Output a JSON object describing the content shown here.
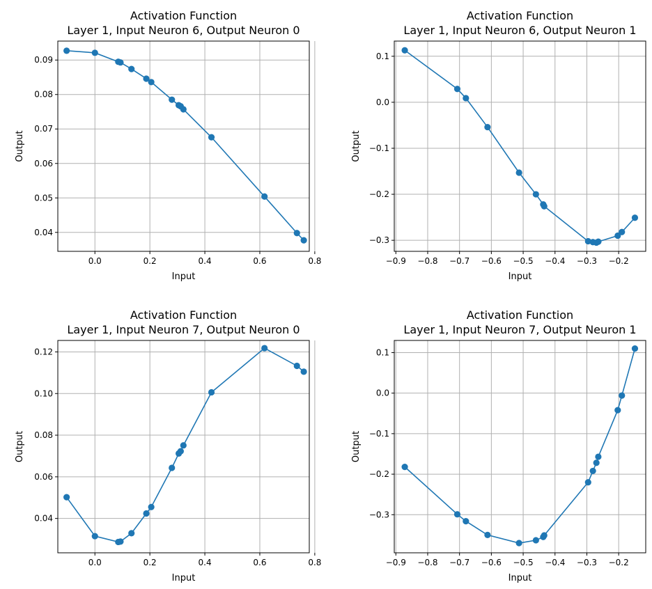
{
  "chart_data": [
    {
      "type": "line",
      "title_line1": "Activation Function",
      "title_line2": "Layer 1, Input Neuron 6, Output Neuron 0",
      "xlabel": "Input",
      "ylabel": "Output",
      "xlim": [
        -0.135,
        0.78
      ],
      "ylim": [
        0.0345,
        0.0955
      ],
      "xticks": [
        0.0,
        0.2,
        0.4,
        0.6,
        0.8
      ],
      "xtick_labels": [
        "0.0",
        "0.2",
        "0.4",
        "0.6",
        "0.8"
      ],
      "yticks": [
        0.04,
        0.05,
        0.06,
        0.07,
        0.08,
        0.09
      ],
      "ytick_labels": [
        "0.04",
        "0.05",
        "0.06",
        "0.07",
        "0.08",
        "0.09"
      ],
      "grid": true,
      "color": "#1f77b4",
      "x": [
        -0.103,
        0.0,
        0.085,
        0.093,
        0.133,
        0.187,
        0.205,
        0.28,
        0.305,
        0.312,
        0.322,
        0.424,
        0.617,
        0.735,
        0.76
      ],
      "y": [
        0.0927,
        0.0921,
        0.0895,
        0.0893,
        0.0874,
        0.0846,
        0.0836,
        0.0785,
        0.0769,
        0.0766,
        0.0757,
        0.0676,
        0.0504,
        0.0398,
        0.0377
      ]
    },
    {
      "type": "line",
      "title_line1": "Activation Function",
      "title_line2": "Layer 1, Input Neuron 6, Output Neuron 1",
      "xlabel": "Input",
      "ylabel": "Output",
      "xlim": [
        -0.905,
        -0.115
      ],
      "ylim": [
        -0.324,
        0.133
      ],
      "xticks": [
        -0.9,
        -0.8,
        -0.7,
        -0.6,
        -0.5,
        -0.4,
        -0.3,
        -0.2
      ],
      "xtick_labels": [
        "−0.9",
        "−0.8",
        "−0.7",
        "−0.6",
        "−0.5",
        "−0.4",
        "−0.3",
        "−0.2"
      ],
      "yticks": [
        -0.3,
        -0.2,
        -0.1,
        0.0,
        0.1
      ],
      "ytick_labels": [
        "−0.3",
        "−0.2",
        "−0.1",
        "0.0",
        "0.1"
      ],
      "grid": true,
      "color": "#1f77b4",
      "x": [
        -0.872,
        -0.707,
        -0.68,
        -0.612,
        -0.513,
        -0.46,
        -0.437,
        -0.434,
        -0.296,
        -0.281,
        -0.27,
        -0.264,
        -0.203,
        -0.19,
        -0.149
      ],
      "y": [
        0.113,
        0.029,
        0.009,
        -0.054,
        -0.153,
        -0.2,
        -0.222,
        -0.226,
        -0.302,
        -0.304,
        -0.305,
        -0.303,
        -0.29,
        -0.282,
        -0.251
      ]
    },
    {
      "type": "line",
      "title_line1": "Activation Function",
      "title_line2": "Layer 1, Input Neuron 7, Output Neuron 0",
      "xlabel": "Input",
      "ylabel": "Output",
      "xlim": [
        -0.135,
        0.78
      ],
      "ylim": [
        0.0235,
        0.1255
      ],
      "xticks": [
        0.0,
        0.2,
        0.4,
        0.6,
        0.8
      ],
      "xtick_labels": [
        "0.0",
        "0.2",
        "0.4",
        "0.6",
        "0.8"
      ],
      "yticks": [
        0.04,
        0.06,
        0.08,
        0.1,
        0.12
      ],
      "ytick_labels": [
        "0.04",
        "0.06",
        "0.08",
        "0.10",
        "0.12"
      ],
      "grid": true,
      "color": "#1f77b4",
      "x": [
        -0.103,
        0.0,
        0.085,
        0.093,
        0.133,
        0.187,
        0.205,
        0.28,
        0.305,
        0.312,
        0.322,
        0.424,
        0.617,
        0.735,
        0.76
      ],
      "y": [
        0.0502,
        0.0315,
        0.0287,
        0.0289,
        0.0329,
        0.0424,
        0.0455,
        0.0643,
        0.0712,
        0.0723,
        0.0751,
        0.1006,
        0.1218,
        0.1133,
        0.1105
      ]
    },
    {
      "type": "line",
      "title_line1": "Activation Function",
      "title_line2": "Layer 1, Input Neuron 7, Output Neuron 1",
      "xlabel": "Input",
      "ylabel": "Output",
      "xlim": [
        -0.905,
        -0.115
      ],
      "ylim": [
        -0.394,
        0.13
      ],
      "xticks": [
        -0.9,
        -0.8,
        -0.7,
        -0.6,
        -0.5,
        -0.4,
        -0.3,
        -0.2
      ],
      "xtick_labels": [
        "−0.9",
        "−0.8",
        "−0.7",
        "−0.6",
        "−0.5",
        "−0.4",
        "−0.3",
        "−0.2"
      ],
      "yticks": [
        -0.3,
        -0.2,
        -0.1,
        0.0,
        0.1
      ],
      "ytick_labels": [
        "−0.3",
        "−0.2",
        "−0.1",
        "0.0",
        "0.1"
      ],
      "grid": true,
      "color": "#1f77b4",
      "x": [
        -0.872,
        -0.707,
        -0.68,
        -0.612,
        -0.513,
        -0.46,
        -0.437,
        -0.434,
        -0.296,
        -0.281,
        -0.27,
        -0.264,
        -0.203,
        -0.19,
        -0.149
      ],
      "y": [
        -0.182,
        -0.299,
        -0.316,
        -0.35,
        -0.37,
        -0.363,
        -0.355,
        -0.351,
        -0.22,
        -0.192,
        -0.172,
        -0.157,
        -0.042,
        -0.006,
        0.11
      ]
    }
  ]
}
